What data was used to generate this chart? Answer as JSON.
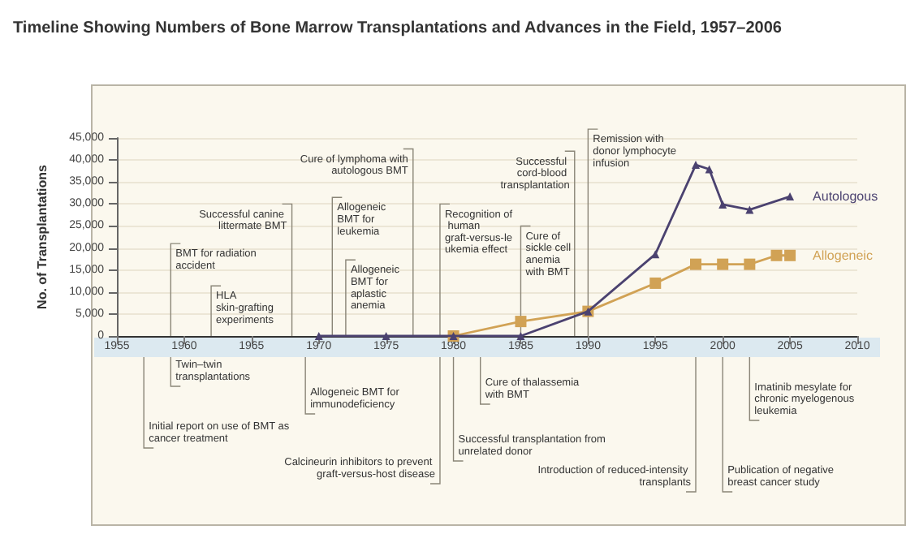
{
  "chart_data": {
    "type": "line",
    "title": "Timeline Showing Numbers of Bone Marrow Transplantations and Advances in the Field, 1957–2006",
    "ylabel": "No. of Transplantations",
    "xlim": [
      1955,
      2010
    ],
    "xticks": [
      1955,
      1960,
      1965,
      1970,
      1975,
      1980,
      1985,
      1990,
      1995,
      2000,
      2005,
      2010
    ],
    "ylim": [
      0,
      45000
    ],
    "yticks": [
      0,
      {
        "value": 5000,
        "label": "5,000"
      },
      {
        "value": 10000,
        "label": "10,000"
      },
      {
        "value": 15000,
        "label": "15,000"
      },
      {
        "value": 20000,
        "label": "20,000"
      },
      {
        "value": 25000,
        "label": "25,000"
      },
      {
        "value": 30000,
        "label": "30,000"
      },
      {
        "value": 35000,
        "label": "35,000"
      },
      {
        "value": 40000,
        "label": "40,000"
      },
      {
        "value": 45000,
        "label": "45,000"
      }
    ],
    "grid": "y",
    "legend": false,
    "series": [
      {
        "name": "Autologous",
        "color": "#4b4270",
        "marker": "triangle",
        "x": [
          1970,
          1975,
          1980,
          1985,
          1990,
          1995,
          1998,
          1999,
          2000,
          2002,
          2005
        ],
        "values": [
          0,
          0,
          0,
          0,
          5600,
          18600,
          38900,
          37900,
          29900,
          28700,
          31700
        ]
      },
      {
        "name": "Allogeneic",
        "color": "#d1a255",
        "marker": "square",
        "x": [
          1980,
          1985,
          1990,
          1995,
          1998,
          2000,
          2002,
          2004,
          2005
        ],
        "values": [
          0,
          3300,
          5600,
          12000,
          16300,
          16300,
          16300,
          18300,
          18300
        ]
      }
    ],
    "ref_lines": [
      {
        "axis": "x",
        "value": 1959,
        "label": "BMT for radiation accident"
      },
      {
        "axis": "x",
        "value": 1968,
        "label": "Successful canine littermate BMT"
      },
      {
        "axis": "x",
        "value": 1962,
        "label": "HLA skin-grafting experiments"
      },
      {
        "axis": "x",
        "value": 1977,
        "label": "Cure of lymphoma with autologous BMT"
      },
      {
        "axis": "x",
        "value": 1971,
        "label": "Allogeneic BMT for leukemia"
      },
      {
        "axis": "x",
        "value": 1972,
        "label": "Allogeneic BMT for aplastic anemia"
      },
      {
        "axis": "x",
        "value": 1979,
        "label": "Recognition of human graft-versus-leukemia effect"
      },
      {
        "axis": "x",
        "value": 1985,
        "label": "Cure of sickle cell anemia with BMT"
      },
      {
        "axis": "x",
        "value": 1989,
        "label": "Successful cord-blood transplantation"
      },
      {
        "axis": "x",
        "value": 1990,
        "label": "Remission with donor lymphocyte infusion"
      },
      {
        "axis": "x",
        "value": 1959,
        "label": "Twin–twin transplantations"
      },
      {
        "axis": "x",
        "value": 1957,
        "label": "Initial report on use of BMT as cancer treatment"
      },
      {
        "axis": "x",
        "value": 1969,
        "label": "Allogeneic BMT for immunodeficiency"
      },
      {
        "axis": "x",
        "value": 1979,
        "label": "Calcineurin inhibitors to prevent graft-versus-host disease"
      },
      {
        "axis": "x",
        "value": 1982,
        "label": "Cure of thalassemia with BMT"
      },
      {
        "axis": "x",
        "value": 1980,
        "label": "Successful transplantation from unrelated donor"
      },
      {
        "axis": "x",
        "value": 1998,
        "label": "Introduction of reduced-intensity transplants"
      },
      {
        "axis": "x",
        "value": 2002,
        "label": "Imatinib mesylate for chronic myelogenous leukemia"
      },
      {
        "axis": "x",
        "value": 2000,
        "label": "Publication of negative breast cancer study"
      }
    ]
  }
}
